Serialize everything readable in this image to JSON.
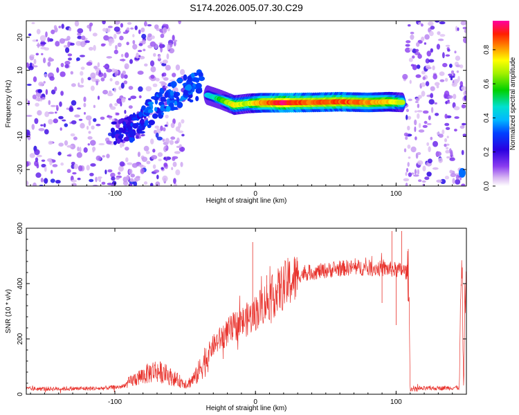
{
  "title": "S174.2026.005.07.30.C29",
  "chart_data": [
    {
      "type": "heatmap",
      "xlabel": "Height of straight line (km)",
      "ylabel": "Frequency (Hz)",
      "xlim": [
        -163,
        150
      ],
      "ylim": [
        -25,
        25
      ],
      "xticks": [
        -100,
        0,
        100
      ],
      "yticks": [
        -20,
        -10,
        0,
        10,
        20
      ],
      "colorbar": {
        "label": "Normalized spectral amplitude",
        "range": [
          0.0,
          0.97
        ],
        "ticks": [
          "0.0",
          "0.2",
          "0.4",
          "0.6",
          "0.8"
        ],
        "tick_values": [
          0.0,
          0.2,
          0.4,
          0.6,
          0.8
        ]
      },
      "noise_regions": [
        {
          "x0": -163,
          "x1": -62,
          "level": 0.12
        },
        {
          "x0": -66,
          "x1": -51,
          "level": 0.08
        },
        {
          "x0": 106,
          "x1": 150,
          "level": 0.1
        }
      ],
      "trend": [
        {
          "x": -102,
          "f": -10,
          "a": 0.22
        },
        {
          "x": -90,
          "f": -8,
          "a": 0.25
        },
        {
          "x": -78,
          "f": -4,
          "a": 0.3
        },
        {
          "x": -65,
          "f": 1,
          "a": 0.32
        },
        {
          "x": -50,
          "f": 4,
          "a": 0.3
        },
        {
          "x": -38,
          "f": 6,
          "a": 0.3
        }
      ],
      "ridge": [
        {
          "x": -34,
          "f": 2.5,
          "a": 0.4
        },
        {
          "x": -25,
          "f": 1.2,
          "a": 0.55
        },
        {
          "x": -15,
          "f": -0.5,
          "a": 0.75
        },
        {
          "x": -5,
          "f": 0.0,
          "a": 0.7
        },
        {
          "x": 5,
          "f": 0.2,
          "a": 0.85
        },
        {
          "x": 20,
          "f": 0.2,
          "a": 0.95
        },
        {
          "x": 40,
          "f": 0.3,
          "a": 0.88
        },
        {
          "x": 60,
          "f": 0.5,
          "a": 0.9
        },
        {
          "x": 80,
          "f": 0.3,
          "a": 0.85
        },
        {
          "x": 95,
          "f": 0.5,
          "a": 0.8
        },
        {
          "x": 105,
          "f": 0.3,
          "a": 0.7
        }
      ],
      "edge_blob": {
        "x": 147,
        "f": -21,
        "a": 0.35
      }
    },
    {
      "type": "line",
      "xlabel": "Height of straight line (km)",
      "ylabel": "SNR (10 * v/v)",
      "xlim": [
        -163,
        150
      ],
      "ylim": [
        0,
        600
      ],
      "xticks": [
        -100,
        0,
        100
      ],
      "yticks": [
        0,
        200,
        400,
        600
      ],
      "series": [
        {
          "name": "SNR",
          "color": "#e8302a",
          "envelope_x": [
            -163,
            -110,
            -95,
            -85,
            -80,
            -72,
            -65,
            -58,
            -52,
            -48,
            -42,
            -35,
            -30,
            -22,
            -15,
            -8,
            -2,
            5,
            12,
            18,
            25,
            35,
            50,
            65,
            80,
            95,
            105,
            109,
            110,
            111,
            145,
            146,
            147,
            148,
            149,
            150
          ],
          "envelope_y": [
            20,
            22,
            28,
            60,
            70,
            90,
            80,
            60,
            45,
            40,
            70,
            140,
            180,
            220,
            250,
            270,
            290,
            330,
            360,
            390,
            420,
            440,
            450,
            460,
            460,
            455,
            450,
            440,
            20,
            20,
            25,
            400,
            420,
            20,
            380,
            380
          ],
          "spikes": [
            {
              "x": -2,
              "y": 550
            },
            {
              "x": 8,
              "y": 430
            },
            {
              "x": 97,
              "y": 590
            },
            {
              "x": 104,
              "y": 590
            },
            {
              "x": 90,
              "y": 330
            },
            {
              "x": 100,
              "y": 250
            }
          ]
        }
      ]
    }
  ]
}
